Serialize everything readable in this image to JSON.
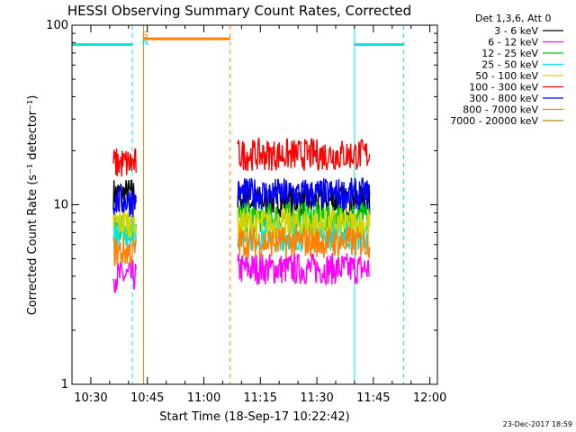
{
  "chart_data": {
    "type": "line",
    "title": "HESSI Observing Summary Count Rates, Corrected",
    "xlabel": "Start Time (18-Sep-17 10:22:42)",
    "ylabel": "Corrected Count Rate (s⁻¹ detector⁻¹)",
    "ylog": true,
    "ylim": [
      1,
      100
    ],
    "xlim": [
      "10:25",
      "12:02"
    ],
    "x_ticks": [
      "10:30",
      "10:45",
      "11:00",
      "11:15",
      "11:30",
      "11:45",
      "12:00"
    ],
    "y_ticks": [
      "1",
      "10",
      "100"
    ],
    "legend_title": "Det 1,3,6, Att 0",
    "legend_placement": "right",
    "timestamp": "23-Dec-2017 18:59",
    "series": [
      {
        "name": "3 - 6 keV",
        "color": "#000000",
        "segments": [
          {
            "start": "10:36",
            "end": "10:42",
            "level": 11.5
          },
          {
            "start": "11:09",
            "end": "11:44",
            "level": 10.5
          }
        ]
      },
      {
        "name": "6 - 12 keV",
        "color": "#ff00ff",
        "segments": [
          {
            "start": "10:36",
            "end": "10:42",
            "level": 4.0
          },
          {
            "start": "11:09",
            "end": "11:44",
            "level": 4.4
          }
        ]
      },
      {
        "name": "12 - 25 keV",
        "color": "#00cc00",
        "segments": [
          {
            "start": "10:36",
            "end": "10:42",
            "level": 7.5
          },
          {
            "start": "11:09",
            "end": "11:44",
            "level": 8.5
          }
        ]
      },
      {
        "name": "25 - 50 keV",
        "color": "#00e5e5",
        "segments": [
          {
            "start": "10:36",
            "end": "10:42",
            "level": 7.0
          },
          {
            "start": "11:09",
            "end": "11:44",
            "level": 6.8
          }
        ]
      },
      {
        "name": "50 - 100 keV",
        "color": "#d4d400",
        "segments": [
          {
            "start": "10:36",
            "end": "10:42",
            "level": 8.0
          },
          {
            "start": "11:09",
            "end": "11:44",
            "level": 7.8
          }
        ]
      },
      {
        "name": "100 - 300 keV",
        "color": "#ff0000",
        "segments": [
          {
            "start": "10:36",
            "end": "10:42",
            "level": 17.0
          },
          {
            "start": "11:09",
            "end": "11:44",
            "level": 19.0
          }
        ]
      },
      {
        "name": "300 - 800 keV",
        "color": "#0000ff",
        "segments": [
          {
            "start": "10:36",
            "end": "10:42",
            "level": 10.5
          },
          {
            "start": "11:09",
            "end": "11:44",
            "level": 11.5
          }
        ]
      },
      {
        "name": "800 - 7000 keV",
        "color": "#ff8000",
        "segments": [
          {
            "start": "10:36",
            "end": "10:42",
            "level": 5.5
          },
          {
            "start": "11:09",
            "end": "11:44",
            "level": 6.2
          }
        ]
      },
      {
        "name": "7000 - 20000 keV",
        "color": "#b8860b",
        "segments": []
      }
    ],
    "markers": [
      {
        "kind": "saa",
        "color": "#00e5e5",
        "level": 78,
        "intervals": [
          [
            "10:25",
            "10:41"
          ],
          [
            "11:40",
            "11:53"
          ]
        ],
        "vlines_solid": [
          "11:40"
        ],
        "vlines_dashed": [
          "10:41",
          "11:53"
        ]
      },
      {
        "kind": "night",
        "color": "#ff8000",
        "level": 84,
        "intervals": [
          [
            "10:44",
            "11:07"
          ]
        ],
        "vlines_solid": [
          "10:44"
        ],
        "vlines_dashed": [
          "11:07"
        ]
      }
    ],
    "marker_labels": [
      {
        "text": "S",
        "color": "#ff8000",
        "time": "10:43"
      },
      {
        "text": "N",
        "color": "#00e5e5",
        "time": "10:43"
      }
    ]
  }
}
